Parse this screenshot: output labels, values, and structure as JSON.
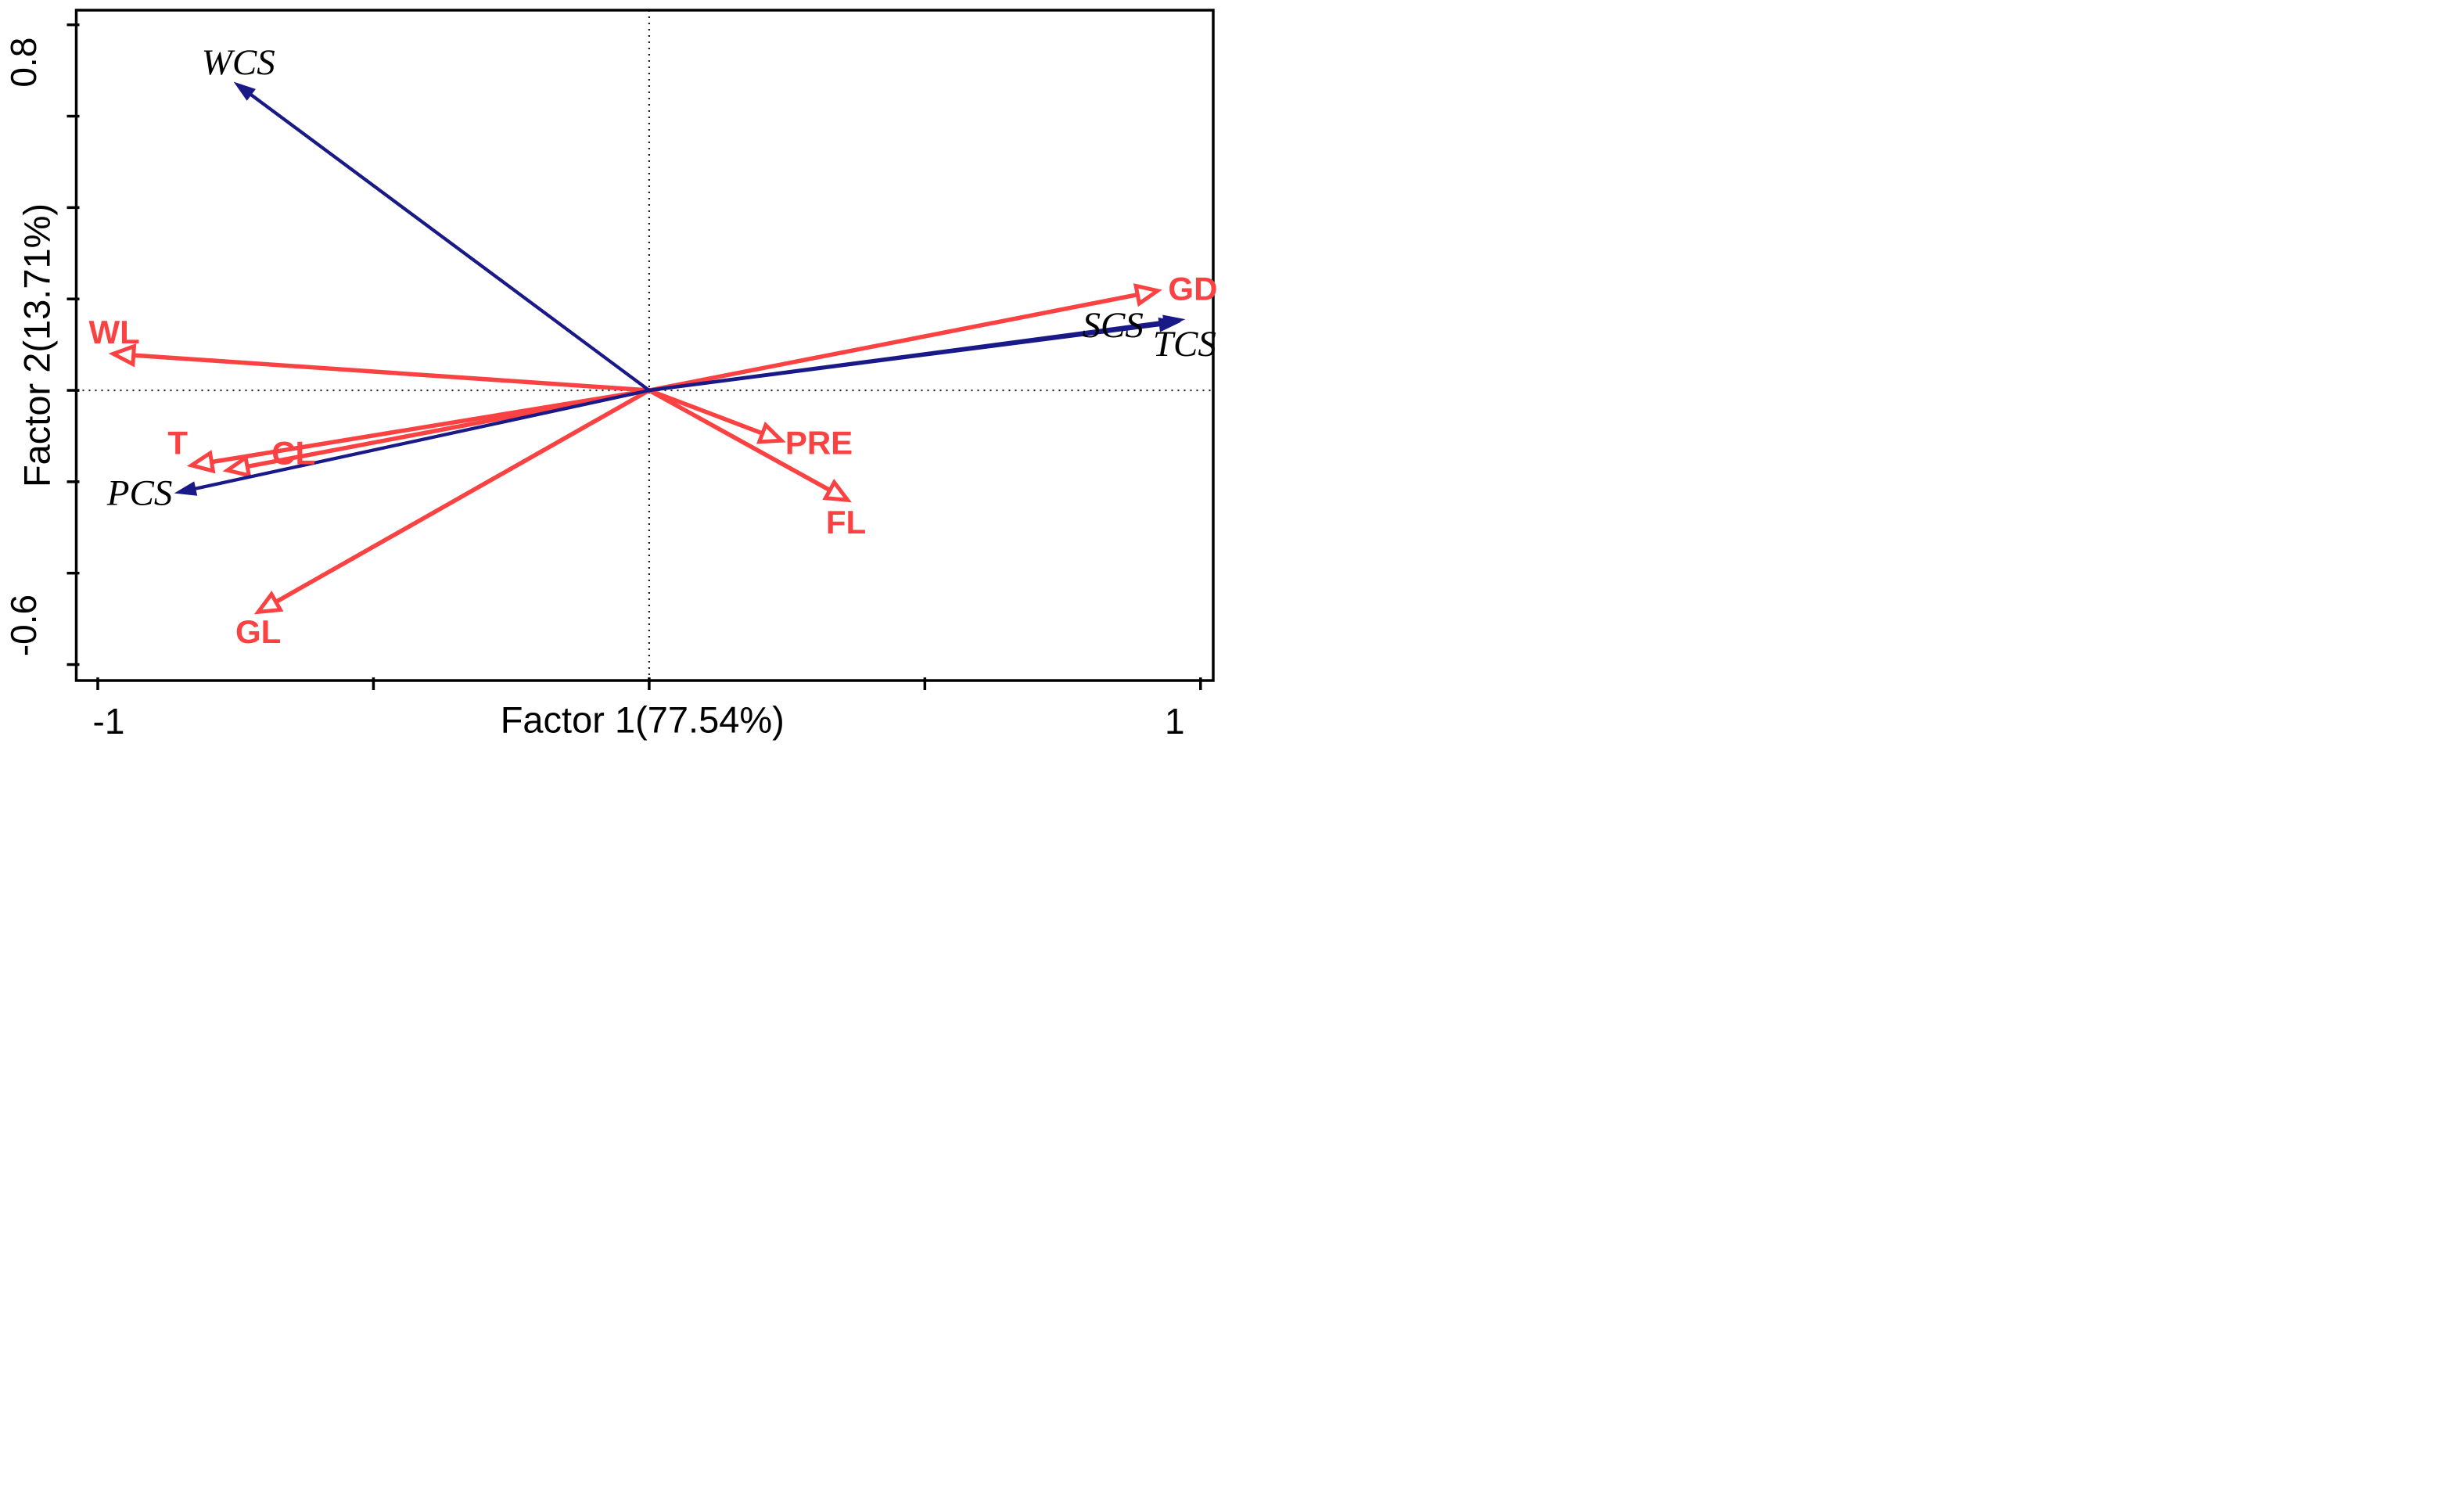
{
  "figure": {
    "description": "PCA factor-loading biplot with red and navy vector arrows",
    "background_color": "#ffffff",
    "frame_color": "#000000",
    "red_accent": "#fa4243",
    "navy_accent": "#191987"
  },
  "chart_data": {
    "type": "scatter",
    "subtype": "pca-loading-arrow-biplot",
    "title": "",
    "xlabel": "Factor 1(77.54%)",
    "ylabel": "Factor 2(13.71%)",
    "xlim": [
      -1.039,
      1.023
    ],
    "ylim": [
      -0.635,
      0.832
    ],
    "grid": false,
    "legend_position": "none",
    "zero_guides": {
      "vertical_at": 0,
      "horizontal_at": 0,
      "style": "dotted",
      "color": "#1a1a1a"
    },
    "x_ticks": [
      {
        "value": -1,
        "label": "-1",
        "label_dx": 14
      },
      {
        "value": -0.5,
        "label": ""
      },
      {
        "value": 0,
        "label": ""
      },
      {
        "value": 0.5,
        "label": ""
      },
      {
        "value": 1,
        "label": "1",
        "label_dx": -33
      }
    ],
    "y_ticks": [
      {
        "value": 0.8,
        "label": "0.8",
        "label_dy": 48
      },
      {
        "value": 0.6,
        "label": ""
      },
      {
        "value": 0.4,
        "label": ""
      },
      {
        "value": 0.2,
        "label": ""
      },
      {
        "value": 0,
        "label": ""
      },
      {
        "value": -0.2,
        "label": ""
      },
      {
        "value": -0.4,
        "label": ""
      },
      {
        "value": -0.6,
        "label": "-0.6",
        "label_dy": -50
      }
    ],
    "series": [
      {
        "name": "red-arrows",
        "color": "#fa4243",
        "arrow_head": "open",
        "label_color": "#fa4243",
        "label_font": "bold-sans",
        "arrows": [
          {
            "label": "WL",
            "x": -0.972,
            "y": 0.08,
            "label_x": -0.97,
            "label_y": 0.128
          },
          {
            "label": "T",
            "x": -0.83,
            "y": -0.164,
            "label_x": -0.855,
            "label_y": -0.115
          },
          {
            "label": "CL",
            "x": -0.765,
            "y": -0.175,
            "label_x": -0.645,
            "label_y": -0.137
          },
          {
            "label": "GL",
            "x": -0.709,
            "y": -0.485,
            "label_x": -0.709,
            "label_y": -0.528
          },
          {
            "label": "PRE",
            "x": 0.24,
            "y": -0.11,
            "label_x": 0.308,
            "label_y": -0.115
          },
          {
            "label": "FL",
            "x": 0.36,
            "y": -0.24,
            "label_x": 0.357,
            "label_y": -0.288
          },
          {
            "label": "GD",
            "x": 0.922,
            "y": 0.218,
            "label_x": 0.986,
            "label_y": 0.223
          }
        ]
      },
      {
        "name": "navy-arrows",
        "color": "#191987",
        "arrow_head": "filled",
        "label_color": "#000000",
        "label_font": "italic-serif",
        "arrows": [
          {
            "label": "WCS",
            "x": -0.75,
            "y": 0.672,
            "label_x": -0.745,
            "label_y": 0.717
          },
          {
            "label": "PCS",
            "x": -0.857,
            "y": -0.224,
            "label_x": -0.924,
            "label_y": -0.225
          },
          {
            "label": "TCS",
            "x": 0.96,
            "y": 0.149,
            "label_x": 0.971,
            "label_y": 0.101
          },
          {
            "label": "SCS",
            "x": 0.968,
            "y": 0.155,
            "label_x": 0.841,
            "label_y": 0.142
          }
        ]
      }
    ]
  }
}
